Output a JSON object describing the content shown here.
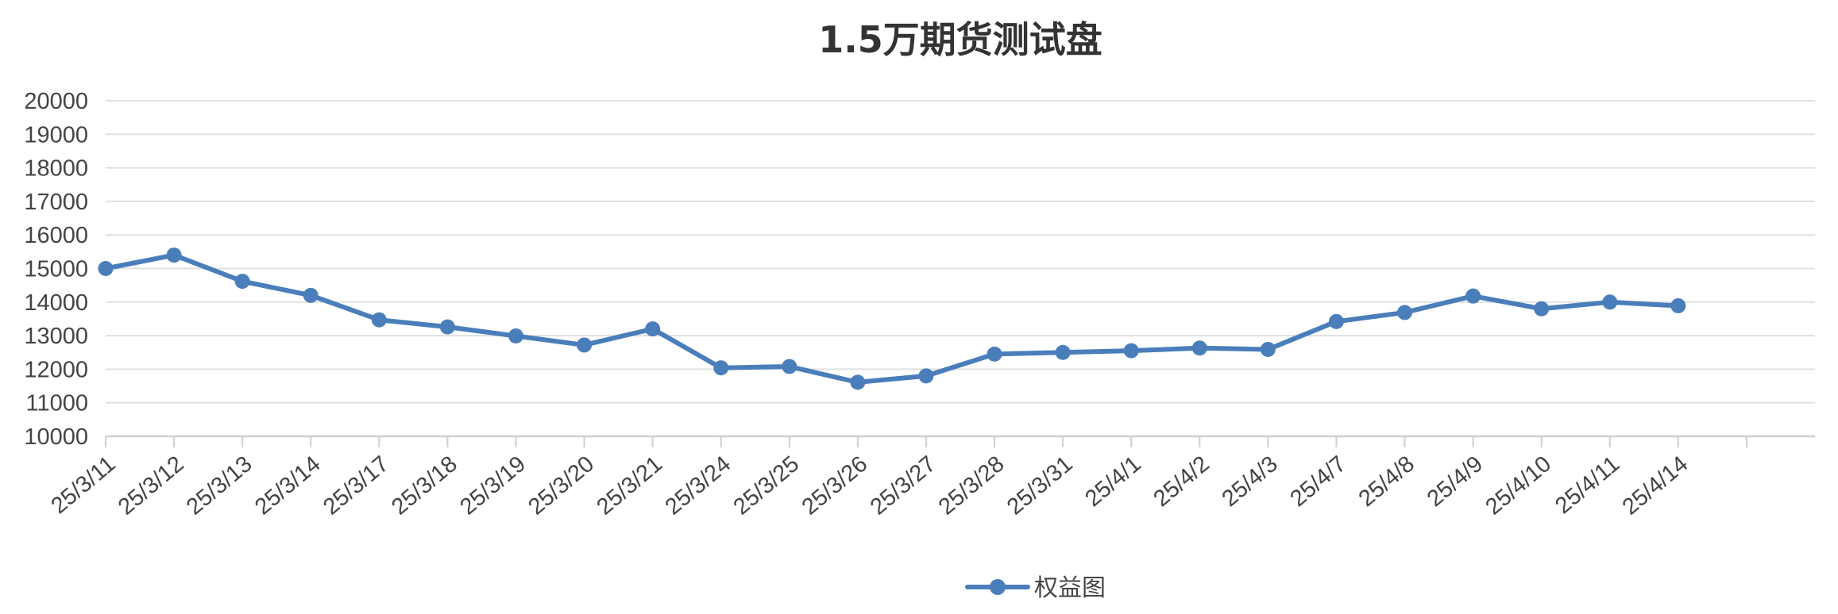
{
  "chart_data": {
    "type": "line",
    "title": "1.5万期货测试盘",
    "xlabel": "",
    "ylabel": "",
    "categories": [
      "25/3/11",
      "25/3/12",
      "25/3/13",
      "25/3/14",
      "25/3/17",
      "25/3/18",
      "25/3/19",
      "25/3/20",
      "25/3/21",
      "25/3/24",
      "25/3/25",
      "25/3/26",
      "25/3/27",
      "25/3/28",
      "25/3/31",
      "25/4/1",
      "25/4/2",
      "25/4/3",
      "25/4/7",
      "25/4/8",
      "25/4/9",
      "25/4/10",
      "25/4/11",
      "25/4/14"
    ],
    "series": [
      {
        "name": "权益图",
        "values": [
          15000,
          15400,
          14620,
          14200,
          13470,
          13260,
          12990,
          12720,
          13200,
          12040,
          12080,
          11610,
          11800,
          12450,
          12500,
          12550,
          12630,
          12590,
          13420,
          13690,
          14180,
          13800,
          14000,
          13890
        ],
        "color": "#4a7ebb"
      }
    ],
    "yticks": [
      "10000",
      "11000",
      "12000",
      "13000",
      "14000",
      "15000",
      "16000",
      "17000",
      "18000",
      "19000",
      "20000"
    ],
    "ylim": [
      10000,
      20000
    ],
    "grid": true,
    "legend": "bottom-center"
  }
}
